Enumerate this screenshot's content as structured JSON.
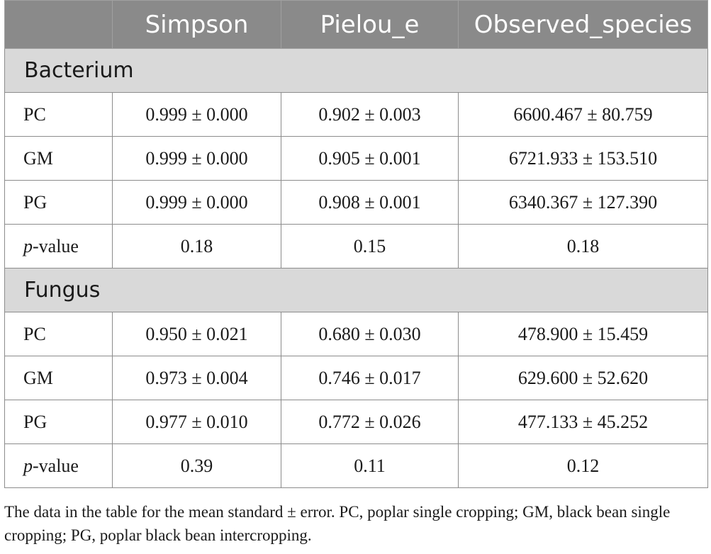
{
  "table": {
    "columns": [
      "",
      "Simpson",
      "Pielou_e",
      "Observed_species"
    ],
    "groups": [
      {
        "label": "Bacterium",
        "rows": [
          {
            "label": "PC",
            "label_italic_prefix": "",
            "values": [
              "0.999 ± 0.000",
              "0.902 ± 0.003",
              "6600.467 ± 80.759"
            ]
          },
          {
            "label": "GM",
            "label_italic_prefix": "",
            "values": [
              "0.999 ± 0.000",
              "0.905 ± 0.001",
              "6721.933 ± 153.510"
            ]
          },
          {
            "label": "PG",
            "label_italic_prefix": "",
            "values": [
              "0.999 ± 0.000",
              "0.908 ± 0.001",
              "6340.367 ± 127.390"
            ]
          },
          {
            "label": "-value",
            "label_italic_prefix": "p",
            "values": [
              "0.18",
              "0.15",
              "0.18"
            ]
          }
        ]
      },
      {
        "label": "Fungus",
        "rows": [
          {
            "label": "PC",
            "label_italic_prefix": "",
            "values": [
              "0.950 ± 0.021",
              "0.680 ± 0.030",
              "478.900 ± 15.459"
            ]
          },
          {
            "label": "GM",
            "label_italic_prefix": "",
            "values": [
              "0.973 ± 0.004",
              "0.746 ± 0.017",
              "629.600 ± 52.620"
            ]
          },
          {
            "label": "PG",
            "label_italic_prefix": "",
            "values": [
              "0.977 ± 0.010",
              "0.772 ± 0.026",
              "477.133 ± 45.252"
            ]
          },
          {
            "label": "-value",
            "label_italic_prefix": "p",
            "values": [
              "0.39",
              "0.11",
              "0.12"
            ]
          }
        ]
      }
    ]
  },
  "caption": "The data in the table for the mean standard ± error. PC, poplar single cropping; GM, black bean single cropping; PG, poplar black bean intercropping.",
  "colors": {
    "header_bg": "#8a8a8a",
    "group_bg": "#d9d9d9"
  }
}
